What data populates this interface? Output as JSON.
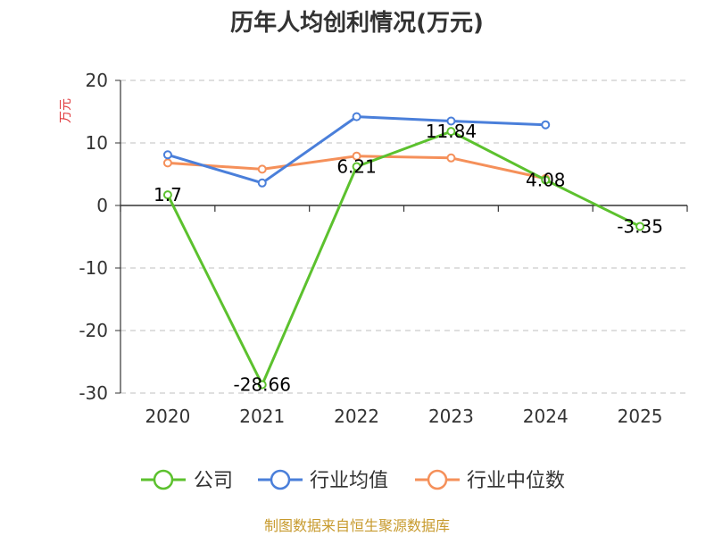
{
  "source_note": "制图数据来自恒生聚源数据库",
  "chart_data": {
    "type": "line",
    "title": "历年人均创利情况(万元)",
    "ylabel": "万元",
    "xlabel": "",
    "categories": [
      "2020",
      "2021",
      "2022",
      "2023",
      "2024",
      "2025"
    ],
    "ylim": [
      -30,
      20
    ],
    "yticks": [
      20,
      10,
      0,
      -10,
      -20,
      -30
    ],
    "grid": true,
    "legend_position": "bottom",
    "series": [
      {
        "name": "公司",
        "color": "#5cc12e",
        "values": [
          1.7,
          -28.66,
          6.21,
          11.84,
          4.08,
          -3.35
        ],
        "labels": [
          "1.7",
          "-28.66",
          "6.21",
          "11.84",
          "4.08",
          "-3.35"
        ]
      },
      {
        "name": "行业均值",
        "color": "#4a7fda",
        "values": [
          8.1,
          3.6,
          14.2,
          13.5,
          12.9,
          null
        ]
      },
      {
        "name": "行业中位数",
        "color": "#f5905a",
        "values": [
          6.8,
          5.8,
          7.9,
          7.6,
          4.3,
          null
        ]
      }
    ]
  }
}
